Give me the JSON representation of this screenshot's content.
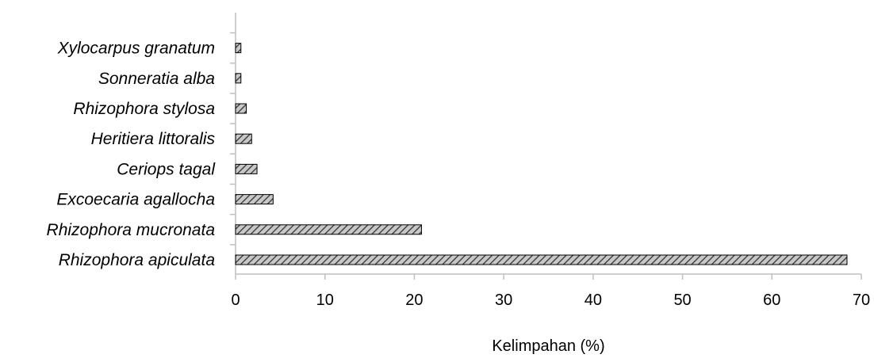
{
  "chart_data": {
    "type": "bar",
    "orientation": "horizontal",
    "categories": [
      "Rhizophora apiculata",
      "Rhizophora mucronata",
      "Excoecaria agallocha",
      "Ceriops tagal",
      "Heritiera littoralis",
      "Rhizophora stylosa",
      "Sonneratia alba",
      "Xylocarpus granatum"
    ],
    "values": [
      68.4,
      20.8,
      4.2,
      2.4,
      1.8,
      1.2,
      0.6,
      0.6
    ],
    "title": "",
    "xlabel": "Kelimpahan (%)",
    "ylabel": "",
    "xlim": [
      0,
      70
    ],
    "x_ticks": [
      0,
      10,
      20,
      30,
      40,
      50,
      60,
      70
    ],
    "x_tick_labels": [
      "0",
      "10",
      "20",
      "30",
      "40",
      "50",
      "60",
      "70"
    ],
    "grid": false,
    "legend": "none",
    "bar_fill": "#c8c8c8",
    "bar_hatch_color": "#333333",
    "bar_stroke": "#000000",
    "axis_color": "#bfbfbf"
  }
}
